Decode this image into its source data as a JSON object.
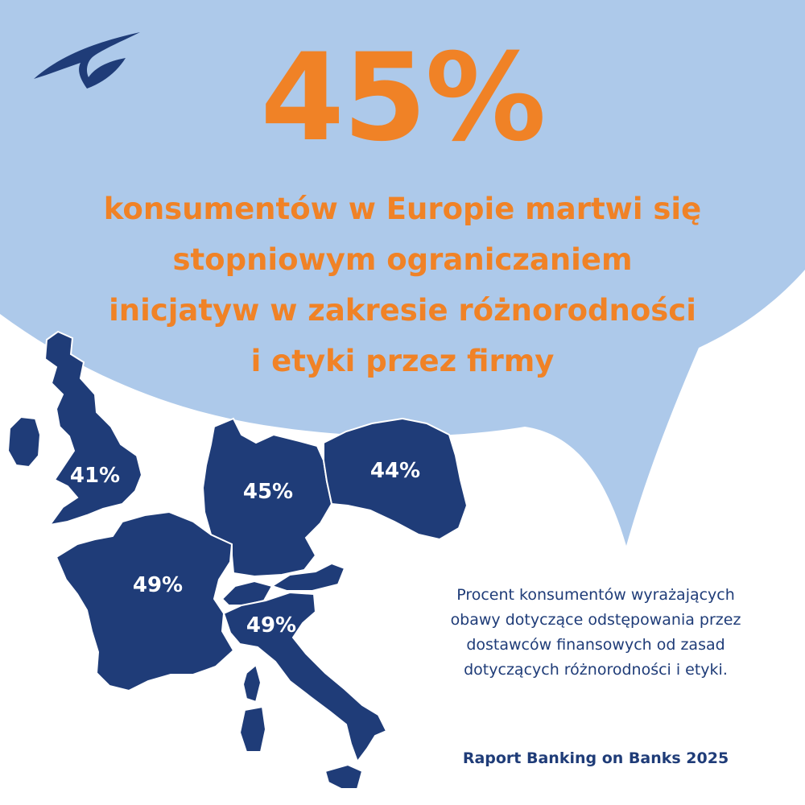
{
  "colors": {
    "bubble": "#adc9ea",
    "accent": "#f08226",
    "navy": "#1f3c78"
  },
  "logo": {
    "icon": "bird-logo-icon"
  },
  "headline": {
    "value": "45%"
  },
  "subtitle": {
    "lines": [
      "konsumentów w Europie martwi się",
      "stopniowym ograniczaniem",
      "inicjatyw w zakresie różnorodności",
      "i etyki przez firmy"
    ]
  },
  "map": {
    "countries": [
      {
        "key": "uk",
        "label": "41%"
      },
      {
        "key": "germany",
        "label": "45%"
      },
      {
        "key": "poland",
        "label": "44%"
      },
      {
        "key": "france",
        "label": "49%"
      },
      {
        "key": "italy",
        "label": "49%"
      }
    ]
  },
  "description": {
    "lines": [
      "Procent konsumentów wyrażających",
      "obawy dotyczące odstępowania przez",
      "dostawców finansowych od zasad",
      "dotyczących różnorodności i etyki."
    ]
  },
  "source": {
    "text": "Raport Banking on Banks 2025"
  }
}
